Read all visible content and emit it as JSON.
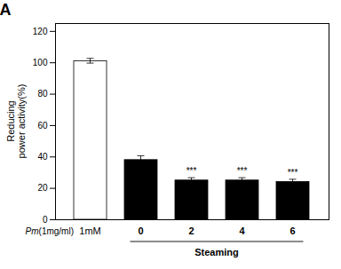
{
  "chart_data": {
    "type": "bar",
    "categories": [
      "1mM",
      "0",
      "2",
      "4",
      "6"
    ],
    "values": [
      101,
      38,
      25,
      25,
      24
    ],
    "errors": [
      1.5,
      2.5,
      1.5,
      1.5,
      1.5
    ],
    "colors": [
      "#ffffff",
      "#000000",
      "#000000",
      "#000000",
      "#000000"
    ],
    "significance": [
      null,
      null,
      "***",
      "***",
      "***"
    ],
    "ylabel": "Reducing\npower activity(%)",
    "ylim": [
      0,
      125
    ],
    "yticks": [
      0,
      20,
      40,
      60,
      80,
      100,
      120
    ],
    "grid": false,
    "panel_label": "A",
    "row_label_italic": "Pm",
    "row_label": "(1mg/ml)",
    "group": {
      "label": "Steaming",
      "categories": [
        "0",
        "2",
        "4",
        "6"
      ]
    }
  }
}
